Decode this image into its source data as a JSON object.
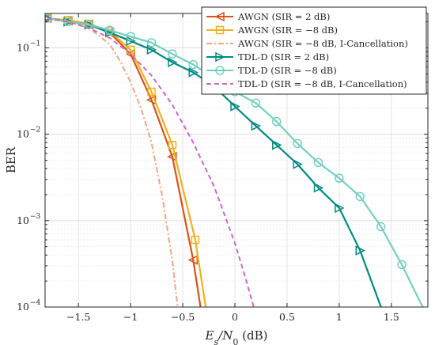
{
  "chart_data": {
    "type": "line",
    "xlabel": "E_s/N_0 (dB)",
    "ylabel": "BER",
    "yscale": "log",
    "xlim": [
      -1.82,
      1.85
    ],
    "ylim": [
      0.0001,
      0.25
    ],
    "xticks": [
      -1.5,
      -1,
      -0.5,
      0,
      0.5,
      1,
      1.5
    ],
    "xtick_labels": [
      "−1.5",
      "−1",
      "−0.5",
      "0",
      "0.5",
      "1",
      "1.5"
    ],
    "yticks": [
      0.0001,
      0.001,
      0.01,
      0.1
    ],
    "ytick_labels": [
      {
        "base": "10",
        "exp": "−4"
      },
      {
        "base": "10",
        "exp": "−3"
      },
      {
        "base": "10",
        "exp": "−2"
      },
      {
        "base": "10",
        "exp": "−1"
      }
    ],
    "grid": true,
    "legend_position": "top-right",
    "series": [
      {
        "name": "AWGN (SIR = 2 dB)",
        "color": "#D95319",
        "dash": "solid",
        "marker": "triangle-left",
        "x": [
          -1.8,
          -1.6,
          -1.4,
          -1.2,
          -1.0,
          -0.8,
          -0.6,
          -0.4,
          -0.33
        ],
        "y": [
          0.22,
          0.205,
          0.185,
          0.15,
          0.085,
          0.025,
          0.0055,
          0.00035,
          0.0001
        ]
      },
      {
        "name": "AWGN (SIR = −8 dB)",
        "color": "#EDB120",
        "dash": "solid",
        "marker": "square",
        "x": [
          -1.8,
          -1.6,
          -1.4,
          -1.2,
          -1.0,
          -0.8,
          -0.6,
          -0.38,
          -0.28
        ],
        "y": [
          0.22,
          0.21,
          0.19,
          0.155,
          0.095,
          0.031,
          0.0075,
          0.0006,
          0.0001
        ]
      },
      {
        "name": "AWGN (SIR = −8 dB, I-Cancellation)",
        "color": "#F4A582",
        "dash": "dashdot",
        "marker": "none",
        "x": [
          -1.8,
          -1.6,
          -1.4,
          -1.2,
          -1.1,
          -1.0,
          -0.9,
          -0.8,
          -0.7,
          -0.6,
          -0.55
        ],
        "y": [
          0.22,
          0.2,
          0.17,
          0.11,
          0.07,
          0.04,
          0.02,
          0.008,
          0.002,
          0.00035,
          0.0001
        ]
      },
      {
        "name": "TDL-D (SIR = 2 dB)",
        "color": "#008B80",
        "dash": "solid",
        "marker": "triangle-right",
        "x": [
          -1.8,
          -1.6,
          -1.4,
          -1.2,
          -1.0,
          -0.8,
          -0.6,
          -0.4,
          -0.2,
          0.0,
          0.2,
          0.4,
          0.6,
          0.8,
          1.0,
          1.2,
          1.4
        ],
        "y": [
          0.22,
          0.2,
          0.185,
          0.15,
          0.12,
          0.095,
          0.068,
          0.052,
          0.036,
          0.021,
          0.0125,
          0.0075,
          0.0045,
          0.0024,
          0.0014,
          0.00045,
          0.0001
        ]
      },
      {
        "name": "TDL-D (SIR = −8 dB)",
        "color": "#74CFC1",
        "dash": "solid",
        "marker": "circle",
        "x": [
          -1.8,
          -1.6,
          -1.4,
          -1.2,
          -1.0,
          -0.8,
          -0.6,
          -0.4,
          -0.2,
          0.0,
          0.2,
          0.4,
          0.6,
          0.8,
          1.0,
          1.2,
          1.4,
          1.6,
          1.8
        ],
        "y": [
          0.22,
          0.2,
          0.185,
          0.16,
          0.135,
          0.115,
          0.085,
          0.064,
          0.045,
          0.031,
          0.023,
          0.014,
          0.0078,
          0.0047,
          0.0031,
          0.0019,
          0.00085,
          0.00031,
          0.0001
        ]
      },
      {
        "name": "TDL-D (SIR = −8 dB, I-Cancellation)",
        "color": "#CC66CC",
        "dash": "dash",
        "marker": "none",
        "x": [
          -1.8,
          -1.6,
          -1.4,
          -1.2,
          -1.0,
          -0.8,
          -0.6,
          -0.4,
          -0.2,
          0.0,
          0.1,
          0.18
        ],
        "y": [
          0.22,
          0.2,
          0.17,
          0.13,
          0.085,
          0.048,
          0.022,
          0.008,
          0.0025,
          0.00055,
          0.00022,
          0.0001
        ]
      }
    ]
  }
}
